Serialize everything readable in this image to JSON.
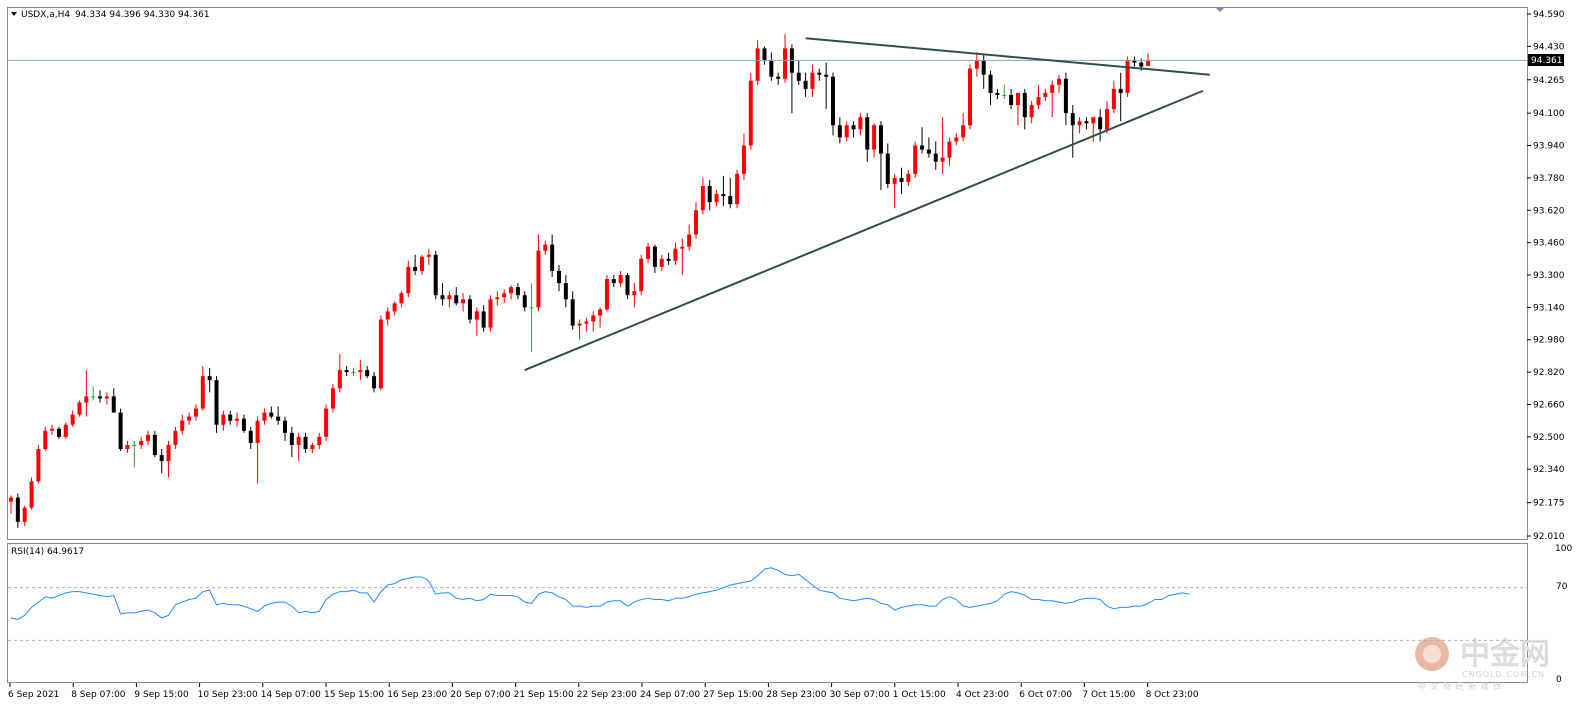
{
  "header": {
    "symbol_label": "USDX,a,H4",
    "ohlc_values": "94.334 94.396 94.330 94.361",
    "current_price_badge": "94.361"
  },
  "rsi_panel": {
    "label": "RSI(14) 64.9617",
    "scale_labels": [
      "100",
      "70",
      "0"
    ]
  },
  "watermark": {
    "brand": "中金网",
    "site": "CNGOLD.COM.CN",
    "tagline": "中 文 财 经 新 媒 体"
  },
  "chart_data": [
    {
      "type": "candlestick",
      "symbol": "USDX",
      "timeframe": "H4",
      "ylim": [
        92.01,
        94.59
      ],
      "y_ticks": [
        "94.590",
        "94.430",
        "94.265",
        "94.100",
        "93.940",
        "93.780",
        "93.620",
        "93.460",
        "93.300",
        "93.140",
        "92.980",
        "92.820",
        "92.660",
        "92.500",
        "92.340",
        "92.175",
        "92.010"
      ],
      "x_tick_labels": [
        "6 Sep 2021",
        "8 Sep 07:00",
        "9 Sep 15:00",
        "10 Sep 23:00",
        "14 Sep 07:00",
        "15 Sep 15:00",
        "16 Sep 23:00",
        "20 Sep 07:00",
        "21 Sep 15:00",
        "22 Sep 23:00",
        "24 Sep 07:00",
        "27 Sep 15:00",
        "28 Sep 23:00",
        "30 Sep 07:00",
        "1 Oct 15:00",
        "4 Oct 23:00",
        "6 Oct 07:00",
        "7 Oct 15:00",
        "8 Oct 23:00"
      ],
      "current_price": 94.361,
      "candles": [
        [
          92.18,
          92.21,
          92.12,
          92.2
        ],
        [
          92.2,
          92.22,
          92.05,
          92.08
        ],
        [
          92.08,
          92.16,
          92.06,
          92.15
        ],
        [
          92.15,
          92.3,
          92.14,
          92.28
        ],
        [
          92.28,
          92.46,
          92.27,
          92.44
        ],
        [
          92.44,
          92.55,
          92.43,
          92.53
        ],
        [
          92.53,
          92.56,
          92.51,
          92.54
        ],
        [
          92.54,
          92.55,
          92.49,
          92.5
        ],
        [
          92.5,
          92.57,
          92.49,
          92.56
        ],
        [
          92.56,
          92.63,
          92.55,
          92.61
        ],
        [
          92.61,
          92.68,
          92.6,
          92.67
        ],
        [
          92.67,
          92.83,
          92.6,
          92.7
        ],
        [
          92.7,
          92.75,
          92.68,
          92.7
        ],
        [
          92.7,
          92.73,
          92.67,
          92.69
        ],
        [
          92.69,
          92.72,
          92.66,
          92.7
        ],
        [
          92.7,
          92.74,
          92.62,
          92.62
        ],
        [
          92.62,
          92.64,
          92.43,
          92.44
        ],
        [
          92.44,
          92.48,
          92.42,
          92.46
        ],
        [
          92.46,
          92.48,
          92.35,
          92.46
        ],
        [
          92.46,
          92.5,
          92.44,
          92.48
        ],
        [
          92.48,
          92.53,
          92.46,
          92.51
        ],
        [
          92.51,
          92.53,
          92.4,
          92.41
        ],
        [
          92.41,
          92.44,
          92.32,
          92.38
        ],
        [
          92.38,
          92.48,
          92.3,
          92.46
        ],
        [
          92.46,
          92.55,
          92.44,
          92.53
        ],
        [
          92.53,
          92.61,
          92.51,
          92.58
        ],
        [
          92.58,
          92.62,
          92.56,
          92.6
        ],
        [
          92.6,
          92.66,
          92.58,
          92.64
        ],
        [
          92.64,
          92.85,
          92.63,
          92.8
        ],
        [
          92.8,
          92.84,
          92.72,
          92.78
        ],
        [
          92.78,
          92.8,
          92.52,
          92.56
        ],
        [
          92.56,
          92.63,
          92.53,
          92.61
        ],
        [
          92.61,
          92.63,
          92.56,
          92.58
        ],
        [
          92.58,
          92.62,
          92.55,
          92.59
        ],
        [
          92.59,
          92.61,
          92.52,
          92.53
        ],
        [
          92.53,
          92.55,
          92.44,
          92.47
        ],
        [
          92.47,
          92.6,
          92.27,
          92.58
        ],
        [
          92.58,
          92.64,
          92.56,
          92.62
        ],
        [
          92.62,
          92.65,
          92.59,
          92.6
        ],
        [
          92.6,
          92.65,
          92.56,
          92.58
        ],
        [
          92.58,
          92.6,
          92.48,
          92.52
        ],
        [
          92.52,
          92.55,
          92.4,
          92.46
        ],
        [
          92.46,
          92.52,
          92.38,
          92.5
        ],
        [
          92.5,
          92.52,
          92.42,
          92.44
        ],
        [
          92.44,
          92.47,
          92.42,
          92.46
        ],
        [
          92.46,
          92.52,
          92.44,
          92.5
        ],
        [
          92.5,
          92.66,
          92.48,
          92.64
        ],
        [
          92.64,
          92.76,
          92.62,
          92.74
        ],
        [
          92.74,
          92.91,
          92.72,
          92.83
        ],
        [
          92.83,
          92.85,
          92.8,
          92.82
        ],
        [
          92.82,
          92.84,
          92.8,
          92.82
        ],
        [
          92.82,
          92.88,
          92.78,
          92.83
        ],
        [
          92.83,
          92.85,
          92.79,
          92.8
        ],
        [
          92.8,
          92.82,
          92.72,
          92.74
        ],
        [
          92.74,
          93.1,
          92.73,
          93.08
        ],
        [
          93.08,
          93.14,
          93.05,
          93.12
        ],
        [
          93.12,
          93.17,
          93.1,
          93.16
        ],
        [
          93.16,
          93.22,
          93.14,
          93.21
        ],
        [
          93.21,
          93.37,
          93.19,
          93.34
        ],
        [
          93.34,
          93.4,
          93.3,
          93.32
        ],
        [
          93.32,
          93.4,
          93.3,
          93.39
        ],
        [
          93.39,
          93.43,
          93.35,
          93.4
        ],
        [
          93.4,
          93.42,
          93.18,
          93.2
        ],
        [
          93.2,
          93.26,
          93.15,
          93.18
        ],
        [
          93.18,
          93.22,
          93.14,
          93.2
        ],
        [
          93.2,
          93.24,
          93.15,
          93.16
        ],
        [
          93.16,
          93.21,
          93.12,
          93.18
        ],
        [
          93.18,
          93.2,
          93.06,
          93.08
        ],
        [
          93.08,
          93.14,
          93.0,
          93.12
        ],
        [
          93.12,
          93.15,
          93.02,
          93.04
        ],
        [
          93.04,
          93.2,
          93.02,
          93.18
        ],
        [
          93.18,
          93.22,
          93.15,
          93.19
        ],
        [
          93.19,
          93.23,
          93.16,
          93.21
        ],
        [
          93.21,
          93.25,
          93.18,
          93.24
        ],
        [
          93.24,
          93.26,
          93.18,
          93.2
        ],
        [
          93.2,
          93.22,
          93.12,
          93.14
        ],
        [
          93.14,
          93.26,
          92.92,
          93.14
        ],
        [
          93.14,
          93.5,
          93.12,
          93.42
        ],
        [
          93.42,
          93.47,
          93.4,
          93.45
        ],
        [
          93.45,
          93.5,
          93.29,
          93.32
        ],
        [
          93.32,
          93.35,
          93.22,
          93.26
        ],
        [
          93.26,
          93.3,
          93.14,
          93.18
        ],
        [
          93.18,
          93.22,
          93.03,
          93.05
        ],
        [
          93.05,
          93.08,
          92.98,
          93.06
        ],
        [
          93.06,
          93.09,
          93.02,
          93.07
        ],
        [
          93.07,
          93.12,
          93.02,
          93.1
        ],
        [
          93.1,
          93.14,
          93.04,
          93.13
        ],
        [
          93.13,
          93.3,
          93.12,
          93.28
        ],
        [
          93.28,
          93.3,
          93.24,
          93.26
        ],
        [
          93.26,
          93.32,
          93.24,
          93.3
        ],
        [
          93.3,
          93.31,
          93.18,
          93.2
        ],
        [
          93.2,
          93.26,
          93.14,
          93.22
        ],
        [
          93.22,
          93.4,
          93.2,
          93.38
        ],
        [
          93.38,
          93.46,
          93.36,
          93.44
        ],
        [
          93.44,
          93.45,
          93.31,
          93.34
        ],
        [
          93.34,
          93.4,
          93.32,
          93.38
        ],
        [
          93.38,
          93.41,
          93.35,
          93.37
        ],
        [
          93.37,
          93.46,
          93.35,
          93.43
        ],
        [
          93.43,
          93.48,
          93.3,
          93.44
        ],
        [
          93.44,
          93.55,
          93.42,
          93.5
        ],
        [
          93.5,
          93.66,
          93.48,
          93.62
        ],
        [
          93.62,
          93.78,
          93.6,
          93.74
        ],
        [
          93.74,
          93.77,
          93.62,
          93.66
        ],
        [
          93.66,
          93.72,
          93.64,
          93.7
        ],
        [
          93.7,
          93.79,
          93.64,
          93.69
        ],
        [
          93.69,
          93.78,
          93.63,
          93.65
        ],
        [
          93.65,
          93.82,
          93.63,
          93.8
        ],
        [
          93.8,
          94.0,
          93.77,
          93.94
        ],
        [
          93.94,
          94.3,
          93.92,
          94.26
        ],
        [
          94.26,
          94.46,
          94.24,
          94.42
        ],
        [
          94.42,
          94.43,
          94.34,
          94.36
        ],
        [
          94.36,
          94.4,
          94.26,
          94.28
        ],
        [
          94.28,
          94.3,
          94.24,
          94.27
        ],
        [
          94.27,
          94.49,
          94.25,
          94.42
        ],
        [
          94.42,
          94.44,
          94.1,
          94.3
        ],
        [
          94.3,
          94.36,
          94.24,
          94.26
        ],
        [
          94.26,
          94.3,
          94.18,
          94.22
        ],
        [
          94.22,
          94.34,
          94.18,
          94.3
        ],
        [
          94.3,
          94.32,
          94.26,
          94.29
        ],
        [
          94.29,
          94.35,
          94.12,
          94.28
        ],
        [
          94.28,
          94.3,
          93.99,
          94.04
        ],
        [
          94.04,
          94.08,
          93.95,
          93.98
        ],
        [
          93.98,
          94.06,
          93.96,
          94.04
        ],
        [
          94.04,
          94.06,
          93.98,
          94.02
        ],
        [
          94.02,
          94.1,
          93.99,
          94.08
        ],
        [
          94.08,
          94.1,
          93.86,
          93.92
        ],
        [
          93.92,
          94.05,
          93.88,
          94.04
        ],
        [
          94.04,
          94.06,
          93.72,
          93.9
        ],
        [
          93.9,
          93.95,
          93.73,
          93.75
        ],
        [
          93.75,
          93.8,
          93.63,
          93.78
        ],
        [
          93.78,
          93.83,
          93.7,
          93.76
        ],
        [
          93.76,
          93.82,
          93.74,
          93.8
        ],
        [
          93.8,
          93.96,
          93.78,
          93.94
        ],
        [
          93.94,
          94.03,
          93.9,
          93.92
        ],
        [
          93.92,
          93.98,
          93.88,
          93.9
        ],
        [
          93.9,
          93.96,
          93.82,
          93.86
        ],
        [
          93.86,
          94.08,
          93.8,
          93.88
        ],
        [
          93.88,
          93.98,
          93.84,
          93.96
        ],
        [
          93.96,
          94.0,
          93.94,
          93.98
        ],
        [
          93.98,
          94.1,
          93.96,
          94.04
        ],
        [
          94.04,
          94.34,
          94.02,
          94.32
        ],
        [
          94.32,
          94.4,
          94.28,
          94.36
        ],
        [
          94.36,
          94.39,
          94.22,
          94.29
        ],
        [
          94.29,
          94.31,
          94.14,
          94.2
        ],
        [
          94.2,
          94.22,
          94.17,
          94.19
        ],
        [
          94.19,
          94.24,
          94.17,
          94.19
        ],
        [
          94.19,
          94.22,
          94.12,
          94.14
        ],
        [
          94.14,
          94.18,
          94.04,
          94.2
        ],
        [
          94.2,
          94.22,
          94.02,
          94.08
        ],
        [
          94.08,
          94.16,
          94.05,
          94.14
        ],
        [
          94.14,
          94.24,
          94.12,
          94.18
        ],
        [
          94.18,
          94.22,
          94.16,
          94.2
        ],
        [
          94.2,
          94.26,
          94.08,
          94.24
        ],
        [
          94.24,
          94.29,
          94.2,
          94.27
        ],
        [
          94.27,
          94.3,
          94.04,
          94.1
        ],
        [
          94.1,
          94.14,
          93.88,
          94.04
        ],
        [
          94.04,
          94.08,
          94.0,
          94.06
        ],
        [
          94.06,
          94.08,
          94.02,
          94.05
        ],
        [
          94.05,
          94.08,
          93.96,
          94.08
        ],
        [
          94.08,
          94.12,
          93.96,
          94.02
        ],
        [
          94.02,
          94.16,
          94.0,
          94.12
        ],
        [
          94.12,
          94.26,
          94.1,
          94.22
        ],
        [
          94.22,
          94.3,
          94.06,
          94.2
        ],
        [
          94.2,
          94.38,
          94.18,
          94.36
        ],
        [
          94.36,
          94.38,
          94.33,
          94.35
        ],
        [
          94.35,
          94.37,
          94.31,
          94.33
        ],
        [
          94.334,
          94.396,
          94.33,
          94.361
        ]
      ],
      "trendlines": [
        {
          "from": {
            "bar": 116,
            "price": 94.47
          },
          "to": {
            "bar": 175,
            "price": 94.29
          }
        },
        {
          "from": {
            "bar": 75,
            "price": 92.83
          },
          "to": {
            "bar": 174,
            "price": 94.21
          }
        }
      ],
      "horizontal_line": 94.361
    },
    {
      "type": "line",
      "name": "RSI(14)",
      "ylim": [
        0,
        100
      ],
      "levels": [
        70,
        30
      ],
      "last_value": 64.9617,
      "values": [
        47,
        46,
        49,
        55,
        59,
        63,
        62,
        64,
        66,
        67,
        67,
        66,
        65,
        64,
        63,
        64,
        50,
        51,
        51,
        52,
        53,
        51,
        47,
        49,
        57,
        59,
        61,
        62,
        67,
        68,
        57,
        58,
        57,
        57,
        56,
        54,
        52,
        56,
        58,
        59,
        59,
        56,
        51,
        52,
        51,
        52,
        61,
        65,
        67,
        67,
        68,
        66,
        66,
        59,
        67,
        72,
        73,
        76,
        77,
        78,
        78,
        75,
        65,
        66,
        66,
        62,
        61,
        62,
        60,
        61,
        65,
        64,
        64,
        64,
        63,
        59,
        58,
        65,
        67,
        66,
        63,
        61,
        56,
        56,
        55,
        56,
        56,
        59,
        60,
        60,
        56,
        59,
        61,
        62,
        61,
        61,
        60,
        62,
        62,
        63,
        65,
        66,
        67,
        68,
        70,
        72,
        73,
        74,
        75,
        79,
        84,
        85,
        83,
        80,
        79,
        80,
        76,
        72,
        68,
        67,
        66,
        62,
        61,
        60,
        61,
        62,
        61,
        58,
        57,
        53,
        55,
        56,
        57,
        57,
        56,
        56,
        61,
        63,
        61,
        56,
        55,
        56,
        57,
        58,
        60,
        65,
        67,
        66,
        64,
        61,
        61,
        60,
        60,
        59,
        58,
        59,
        61,
        62,
        62,
        61,
        56,
        54,
        55,
        55,
        56,
        56,
        58,
        61,
        61,
        64,
        65,
        66,
        65
      ]
    }
  ]
}
